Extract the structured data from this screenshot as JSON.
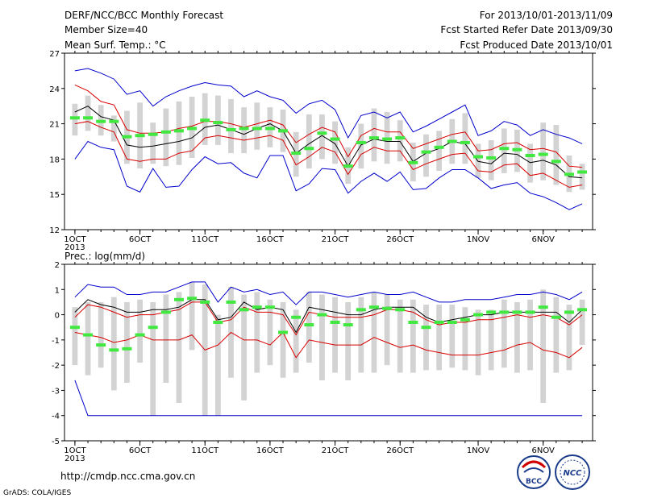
{
  "header": {
    "title": "DERF/NCC/BCC Monthly Forecast",
    "member_size": "Member Size=40",
    "panel1_var": "Mean Surf. Temp.: °C",
    "period": "For 2013/10/01-2013/11/09",
    "fcst_started": "Fcst Started Refer Date 2013/09/30",
    "fcst_produced": "Fcst Produced Date 2013/10/01"
  },
  "footer": {
    "url": "http://cmdp.ncc.cma.gov.cn",
    "grads": "GrADS: COLA/IGES",
    "logo_bcc": "BCC",
    "logo_ncc": "NCC"
  },
  "colors": {
    "box": "#d3d3d3",
    "mean": "#40e840",
    "ensemble_mean": "#000000",
    "red_envelope": "#d80000",
    "blue_envelope": "#0000cc"
  },
  "chart_data": [
    {
      "type": "line",
      "title": "Mean Surf. Temp.: °C",
      "x_tick_labels": [
        "1OCT",
        "6OCT",
        "11OCT",
        "16OCT",
        "21OCT",
        "26OCT",
        "1NOV",
        "6NOV"
      ],
      "x_tick_days": [
        1,
        6,
        11,
        16,
        21,
        26,
        32,
        37
      ],
      "x_year_label": "2013",
      "days": [
        1,
        2,
        3,
        4,
        5,
        6,
        7,
        8,
        9,
        10,
        11,
        12,
        13,
        14,
        15,
        16,
        17,
        18,
        19,
        20,
        21,
        22,
        23,
        24,
        25,
        26,
        27,
        28,
        29,
        30,
        31,
        32,
        33,
        34,
        35,
        36,
        37,
        38,
        39,
        40
      ],
      "ylim": [
        12,
        27
      ],
      "y_ticks": [
        12,
        15,
        18,
        21,
        24,
        27
      ],
      "series": [
        {
          "role": "blue_upper",
          "values": [
            25.5,
            25.7,
            25.3,
            24.8,
            23.5,
            23.8,
            22.5,
            23.3,
            23.8,
            24.2,
            24.5,
            24.3,
            24.2,
            23.3,
            23.8,
            23.3,
            23.0,
            21.9,
            22.7,
            23.0,
            22.2,
            19.8,
            21.7,
            22.0,
            21.5,
            22.0,
            20.3,
            20.8,
            21.4,
            22.0,
            22.6,
            20.0,
            20.4,
            21.2,
            20.9,
            20.0,
            20.5,
            20.1,
            19.8,
            19.3
          ]
        },
        {
          "role": "red_upper",
          "values": [
            24.3,
            23.8,
            22.9,
            22.6,
            20.5,
            20.2,
            20.2,
            20.3,
            20.6,
            20.8,
            21.2,
            21.2,
            21.0,
            20.7,
            21.0,
            21.3,
            20.9,
            19.4,
            20.1,
            20.7,
            20.3,
            18.2,
            20.0,
            20.6,
            20.3,
            20.3,
            18.9,
            19.3,
            19.7,
            20.1,
            20.3,
            18.7,
            18.8,
            19.3,
            19.4,
            18.8,
            18.9,
            18.6,
            17.4,
            17.3
          ]
        },
        {
          "role": "ensemble_mean",
          "values": [
            22.0,
            22.5,
            21.6,
            21.3,
            19.2,
            19.0,
            19.1,
            19.3,
            19.5,
            19.8,
            20.7,
            20.9,
            20.5,
            20.1,
            20.6,
            21.0,
            20.4,
            18.5,
            19.3,
            20.0,
            19.3,
            17.4,
            19.2,
            19.7,
            19.5,
            19.5,
            17.8,
            18.5,
            18.9,
            19.5,
            19.3,
            17.8,
            17.6,
            18.5,
            18.4,
            17.7,
            17.9,
            17.5,
            16.5,
            16.4
          ]
        },
        {
          "role": "red_lower",
          "values": [
            21.0,
            21.2,
            20.7,
            20.3,
            18.0,
            17.8,
            18.0,
            18.0,
            18.5,
            18.7,
            19.8,
            20.0,
            19.8,
            19.6,
            19.8,
            20.0,
            19.6,
            17.5,
            18.2,
            19.0,
            18.6,
            16.7,
            18.4,
            19.0,
            18.7,
            18.7,
            17.1,
            17.6,
            18.0,
            18.4,
            18.5,
            17.0,
            16.9,
            17.5,
            17.6,
            16.6,
            16.8,
            16.2,
            15.6,
            15.8
          ]
        },
        {
          "role": "blue_lower",
          "values": [
            18.0,
            19.5,
            19.0,
            18.8,
            15.7,
            15.2,
            17.2,
            15.6,
            15.7,
            17.1,
            18.2,
            17.6,
            17.7,
            16.8,
            16.4,
            18.3,
            18.3,
            15.3,
            15.9,
            17.2,
            17.1,
            15.1,
            16.1,
            16.8,
            16.1,
            16.9,
            15.4,
            15.5,
            16.4,
            17.1,
            17.1,
            16.4,
            15.5,
            15.8,
            16.0,
            15.1,
            14.8,
            14.3,
            13.7,
            14.2
          ]
        },
        {
          "role": "mean_marker",
          "values": [
            21.5,
            21.5,
            21.2,
            21.2,
            19.9,
            20.0,
            20.1,
            20.3,
            20.4,
            20.6,
            21.3,
            21.1,
            20.5,
            20.6,
            20.6,
            20.6,
            20.4,
            18.5,
            18.9,
            20.2,
            19.7,
            17.4,
            19.4,
            19.8,
            19.7,
            19.8,
            17.7,
            18.6,
            19.0,
            19.5,
            19.4,
            18.2,
            18.1,
            18.9,
            18.8,
            18.3,
            18.4,
            17.8,
            16.7,
            16.9
          ]
        }
      ],
      "boxes": {
        "low": [
          20.0,
          20.4,
          20.0,
          19.5,
          17.6,
          17.2,
          17.6,
          17.4,
          17.5,
          18.1,
          19.2,
          19.2,
          18.5,
          18.5,
          18.8,
          19.0,
          18.6,
          16.5,
          17.2,
          18.0,
          17.6,
          15.9,
          17.2,
          17.8,
          17.6,
          17.8,
          16.1,
          16.5,
          17.0,
          17.6,
          17.6,
          16.4,
          16.2,
          16.8,
          16.9,
          16.0,
          16.2,
          15.8,
          15.2,
          15.4
        ],
        "high": [
          22.7,
          23.4,
          22.6,
          21.7,
          22.1,
          22.8,
          21.1,
          22.3,
          22.9,
          23.3,
          23.6,
          23.4,
          23.1,
          22.4,
          22.8,
          22.4,
          22.2,
          20.3,
          21.8,
          21.8,
          21.2,
          19.0,
          21.0,
          22.3,
          22.0,
          21.3,
          19.4,
          20.1,
          20.4,
          21.4,
          21.9,
          19.3,
          19.6,
          20.6,
          20.5,
          19.3,
          21.1,
          20.9,
          18.3,
          17.6
        ]
      }
    },
    {
      "type": "line",
      "title": "Prec.: log(mm/d)",
      "x_tick_labels": [
        "1OCT",
        "6OCT",
        "11OCT",
        "16OCT",
        "21OCT",
        "26OCT",
        "1NOV",
        "6NOV"
      ],
      "x_tick_days": [
        1,
        6,
        11,
        16,
        21,
        26,
        32,
        37
      ],
      "x_year_label": "2013",
      "days": [
        1,
        2,
        3,
        4,
        5,
        6,
        7,
        8,
        9,
        10,
        11,
        12,
        13,
        14,
        15,
        16,
        17,
        18,
        19,
        20,
        21,
        22,
        23,
        24,
        25,
        26,
        27,
        28,
        29,
        30,
        31,
        32,
        33,
        34,
        35,
        36,
        37,
        38,
        39,
        40
      ],
      "ylim": [
        -5,
        2
      ],
      "y_ticks": [
        -5,
        -4,
        -3,
        -2,
        -1,
        0,
        1,
        2
      ],
      "series": [
        {
          "role": "blue_upper",
          "values": [
            0.7,
            1.2,
            1.1,
            1.1,
            0.8,
            0.8,
            0.9,
            0.9,
            1.1,
            1.3,
            1.3,
            0.5,
            1.1,
            0.9,
            1.0,
            0.8,
            0.9,
            0.4,
            0.9,
            0.9,
            0.8,
            0.7,
            0.8,
            0.9,
            0.8,
            0.8,
            0.9,
            0.7,
            0.5,
            0.5,
            0.6,
            0.6,
            0.6,
            0.7,
            0.8,
            0.8,
            0.9,
            0.8,
            0.6,
            0.9
          ]
        },
        {
          "role": "ensemble_mean",
          "values": [
            0.1,
            0.6,
            0.4,
            0.3,
            0.1,
            0.1,
            0.2,
            0.2,
            0.3,
            0.6,
            0.6,
            -0.2,
            -0.1,
            0.5,
            0.2,
            0.3,
            0.2,
            -0.7,
            0.3,
            0.2,
            0.1,
            0.0,
            0.0,
            0.2,
            0.3,
            0.3,
            0.3,
            -0.1,
            -0.3,
            -0.2,
            -0.1,
            0.0,
            0.0,
            0.1,
            0.1,
            0.1,
            0.1,
            0.1,
            -0.3,
            0.2
          ]
        },
        {
          "role": "red_upper",
          "values": [
            -0.1,
            0.4,
            0.3,
            0.1,
            -0.1,
            0.0,
            0.0,
            0.1,
            0.2,
            0.5,
            0.5,
            -0.3,
            -0.2,
            0.3,
            0.1,
            0.1,
            0.0,
            -0.8,
            0.1,
            0.0,
            -0.1,
            -0.1,
            -0.1,
            0.0,
            0.2,
            0.2,
            0.1,
            -0.2,
            -0.4,
            -0.3,
            -0.3,
            -0.2,
            -0.2,
            -0.1,
            0.0,
            -0.1,
            0.0,
            -0.1,
            -0.4,
            0.0
          ]
        },
        {
          "role": "red_lower",
          "values": [
            -0.7,
            -0.8,
            -0.9,
            -1.1,
            -1.0,
            -0.8,
            -1.0,
            -1.0,
            -1.0,
            -0.8,
            -1.4,
            -1.2,
            -0.7,
            -1.0,
            -1.0,
            -1.2,
            -0.7,
            -1.7,
            -1.0,
            -1.1,
            -1.2,
            -1.2,
            -1.2,
            -0.9,
            -1.1,
            -1.3,
            -1.2,
            -1.4,
            -1.5,
            -1.6,
            -1.6,
            -1.6,
            -1.5,
            -1.4,
            -1.2,
            -1.1,
            -1.4,
            -1.5,
            -1.7,
            -1.3
          ]
        },
        {
          "role": "blue_lower",
          "values": [
            -2.6,
            -4.0,
            -4.0,
            -4.0,
            -4.0,
            -4.0,
            -4.0,
            -4.0,
            -4.0,
            -4.0,
            -4.0,
            -4.0,
            -4.0,
            -4.0,
            -4.0,
            -4.0,
            -4.0,
            -4.0,
            -4.0,
            -4.0,
            -4.0,
            -4.0,
            -4.0,
            -4.0,
            -4.0,
            -4.0,
            -4.0,
            -4.0,
            -4.0,
            -4.0,
            -4.0,
            -4.0,
            -4.0,
            -4.0,
            -4.0,
            -4.0,
            -4.0,
            -4.0,
            -4.0,
            -4.0
          ]
        },
        {
          "role": "mean_marker",
          "values": [
            -0.5,
            -0.8,
            -1.2,
            -1.4,
            -1.35,
            -0.8,
            -0.5,
            0.1,
            0.6,
            0.65,
            0.5,
            -0.3,
            0.5,
            0.2,
            0.3,
            0.3,
            -0.7,
            -0.1,
            -0.4,
            0.0,
            -0.3,
            -0.4,
            0.2,
            0.3,
            0.25,
            0.2,
            -0.3,
            -0.5,
            -0.3,
            -0.3,
            -0.2,
            0.0,
            0.1,
            0.1,
            0.1,
            0.1,
            0.3,
            -0.1,
            0.1,
            0.2
          ]
        }
      ],
      "boxes": {
        "low": [
          -2.0,
          -2.4,
          -2.1,
          -3.0,
          -2.7,
          -1.9,
          -4.0,
          -2.7,
          -3.5,
          -1.4,
          -4.0,
          -4.0,
          -2.5,
          -3.4,
          -2.3,
          -2.0,
          -2.5,
          -2.3,
          -1.9,
          -2.6,
          -2.3,
          -2.6,
          -2.3,
          -2.3,
          -2.0,
          -2.3,
          -2.3,
          -2.2,
          -2.2,
          -2.1,
          -2.2,
          -2.4,
          -2.2,
          -2.1,
          -2.3,
          -2.2,
          -3.5,
          -2.3,
          -2.2,
          -1.2
        ],
        "high": [
          0.3,
          0.5,
          0.5,
          0.7,
          0.5,
          0.6,
          0.5,
          0.8,
          0.9,
          1.3,
          1.2,
          0.0,
          1.1,
          0.8,
          0.9,
          0.6,
          0.5,
          0.2,
          0.9,
          0.8,
          0.7,
          0.5,
          0.7,
          0.9,
          0.8,
          0.6,
          0.6,
          0.4,
          0.4,
          0.4,
          0.3,
          0.2,
          0.2,
          0.6,
          0.5,
          0.6,
          1.0,
          0.7,
          0.4,
          0.6
        ]
      }
    }
  ]
}
